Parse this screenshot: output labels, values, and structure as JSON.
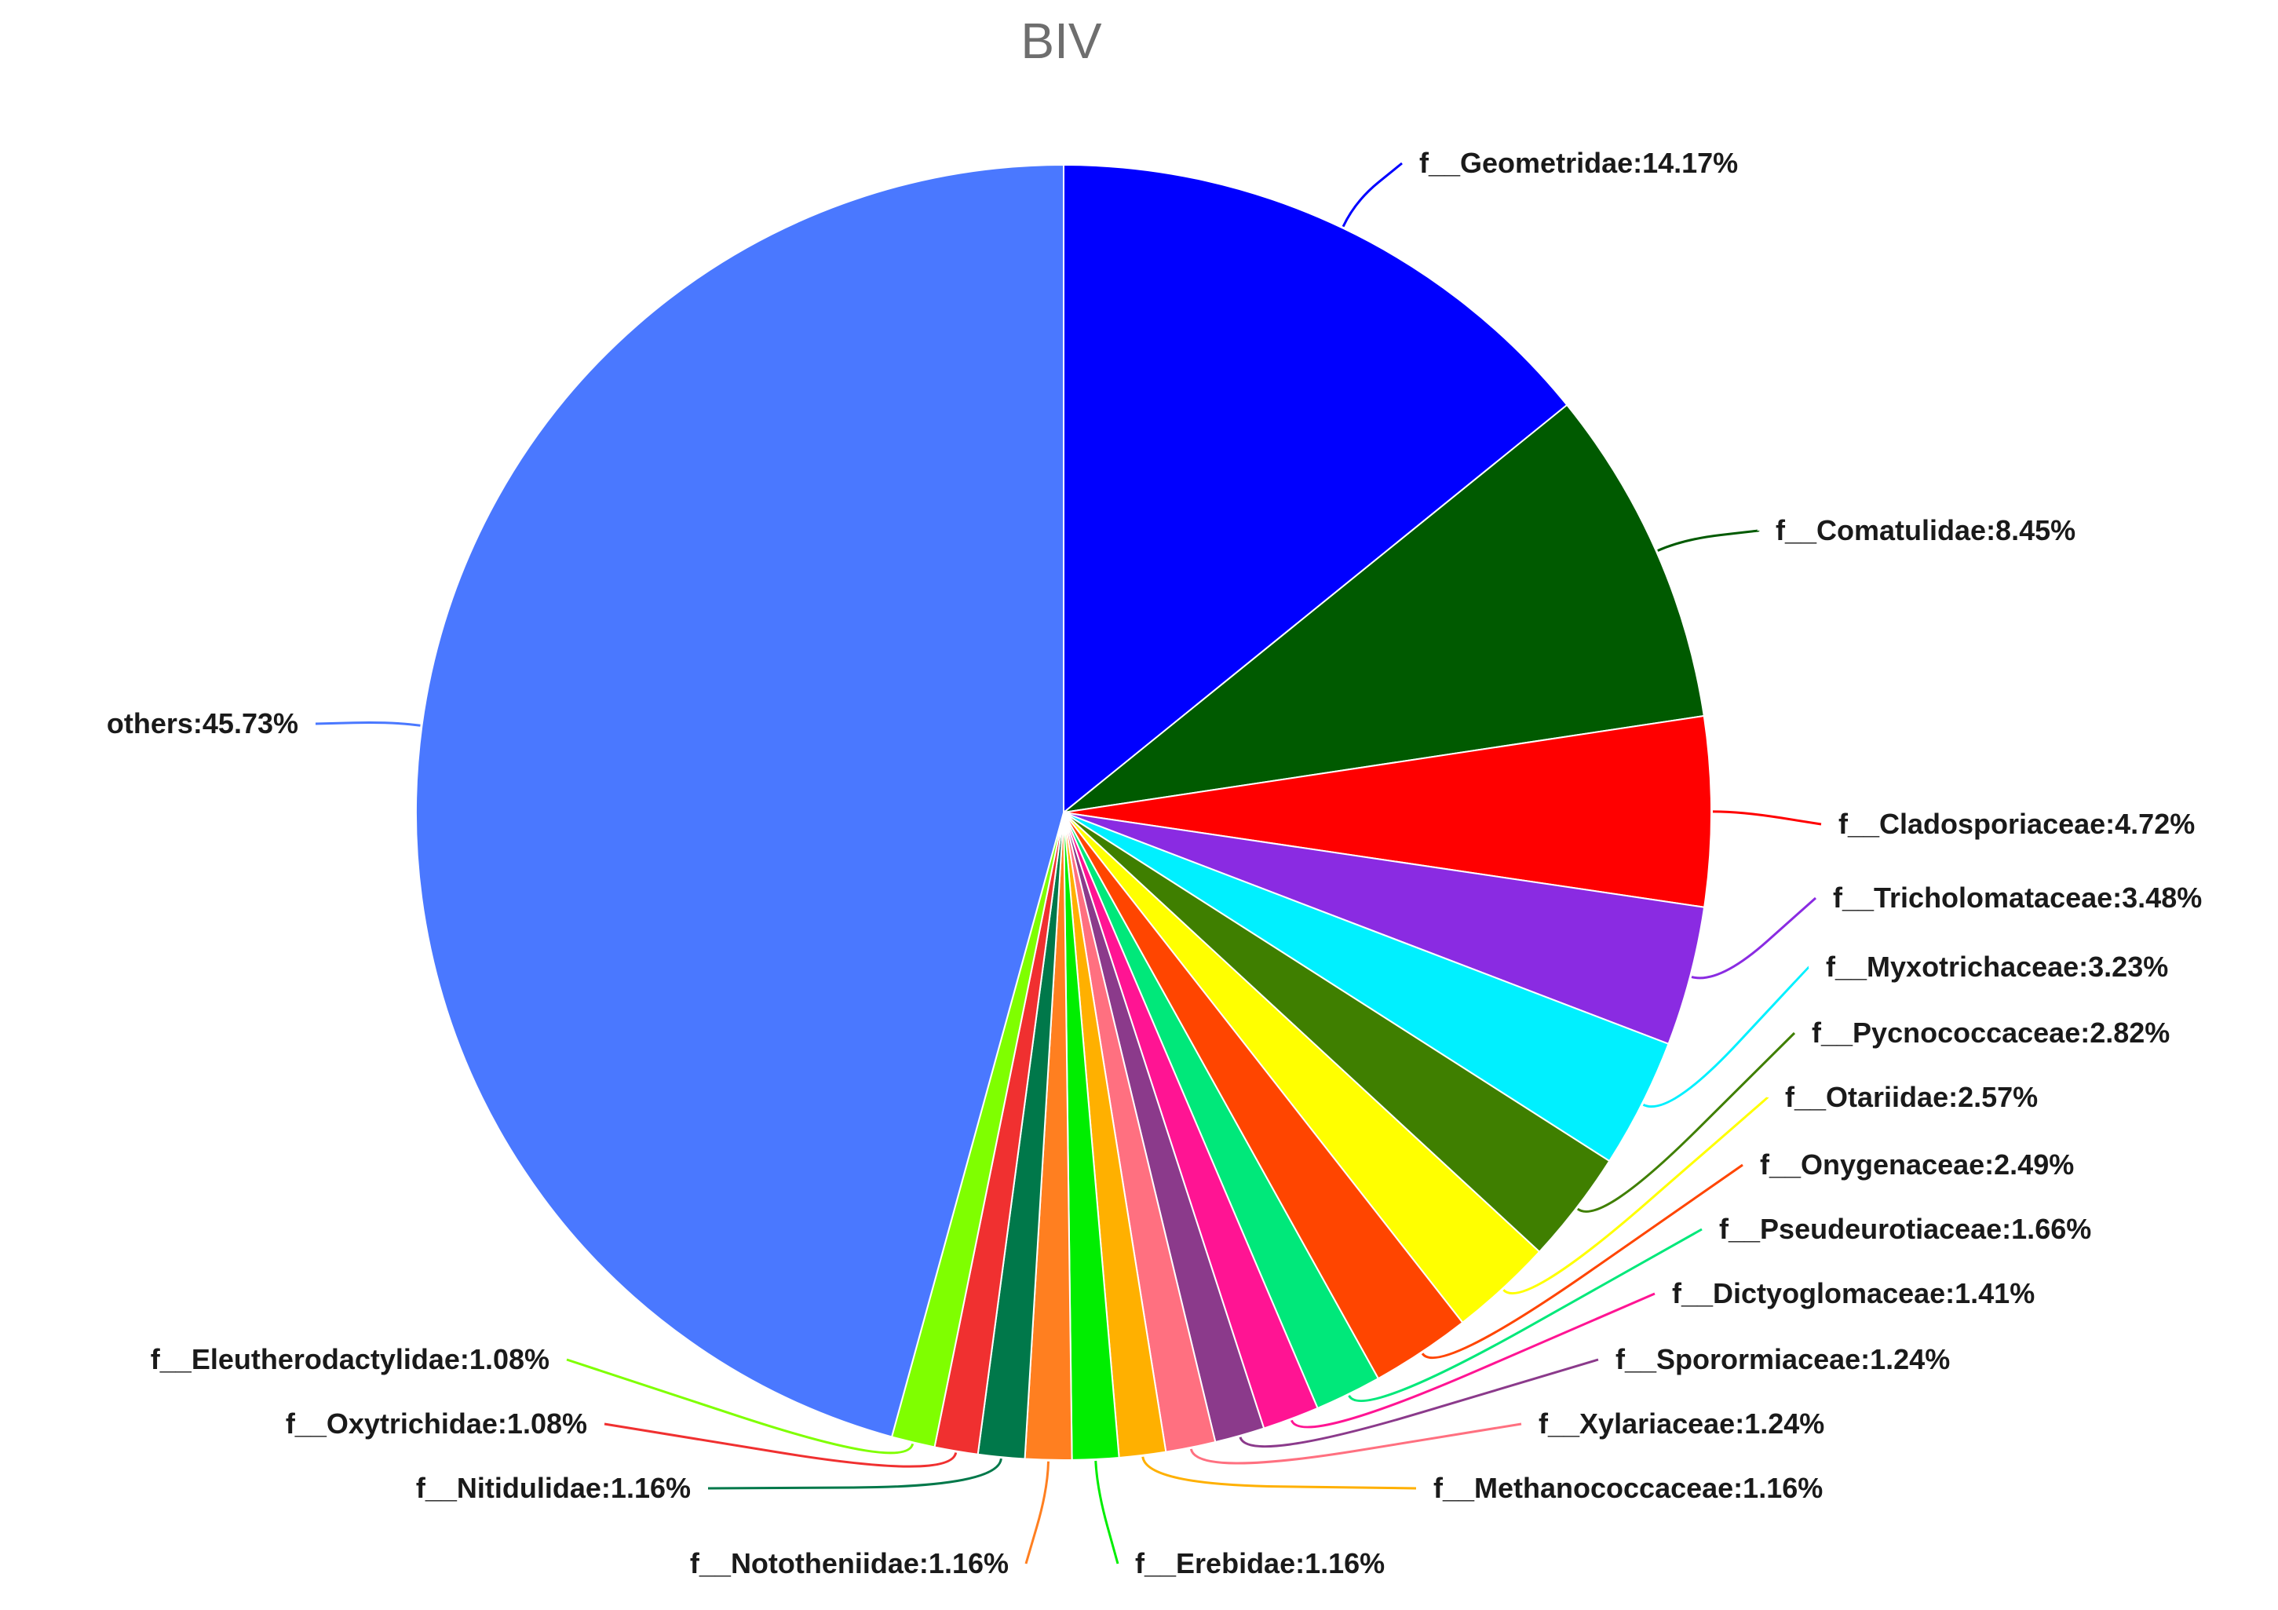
{
  "chart_data": {
    "type": "pie",
    "title": "BIV",
    "start": "12 o'clock",
    "direction": "clockwise",
    "slices": [
      {
        "label": "f__Geometridae:14.17%",
        "value": 14.17,
        "color": "#0000ff"
      },
      {
        "label": "f__Comatulidae:8.45%",
        "value": 8.45,
        "color": "#005a00"
      },
      {
        "label": "f__Cladosporiaceae:4.72%",
        "value": 4.72,
        "color": "#ff0000"
      },
      {
        "label": "f__Tricholomataceae:3.48%",
        "value": 3.48,
        "color": "#8a2be2"
      },
      {
        "label": "f__Myxotrichaceae:3.23%",
        "value": 3.23,
        "color": "#00f0ff"
      },
      {
        "label": "f__Pycnococcaceae:2.82%",
        "value": 2.82,
        "color": "#3f7f00"
      },
      {
        "label": "f__Otariidae:2.57%",
        "value": 2.57,
        "color": "#ffff00"
      },
      {
        "label": "f__Onygenaceae:2.49%",
        "value": 2.49,
        "color": "#ff4500"
      },
      {
        "label": "f__Pseudeurotiaceae:1.66%",
        "value": 1.66,
        "color": "#00e87a"
      },
      {
        "label": "f__Dictyoglomaceae:1.41%",
        "value": 1.41,
        "color": "#ff1493"
      },
      {
        "label": "f__Sporormiaceae:1.24%",
        "value": 1.24,
        "color": "#8b3a8b"
      },
      {
        "label": "f__Xylariaceae:1.24%",
        "value": 1.24,
        "color": "#ff7080"
      },
      {
        "label": "f__Methanococcaceae:1.16%",
        "value": 1.16,
        "color": "#ffb000"
      },
      {
        "label": "f__Erebidae:1.16%",
        "value": 1.16,
        "color": "#00ee00"
      },
      {
        "label": "f__Nototheniidae:1.16%",
        "value": 1.16,
        "color": "#ff7f20"
      },
      {
        "label": "f__Nitidulidae:1.16%",
        "value": 1.16,
        "color": "#00784a"
      },
      {
        "label": "f__Oxytrichidae:1.08%",
        "value": 1.08,
        "color": "#f03030"
      },
      {
        "label": "f__Eleutherodactylidae:1.08%",
        "value": 1.08,
        "color": "#7fff00"
      },
      {
        "label": "others:45.73%",
        "value": 45.73,
        "color": "#4a78ff"
      }
    ]
  }
}
